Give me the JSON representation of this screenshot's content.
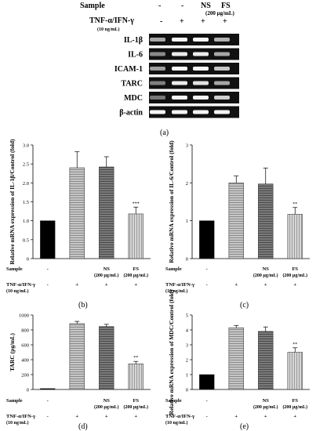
{
  "panel_a": {
    "header_sample": "Sample",
    "header_tnf": "TNF-α/IFN-γ",
    "header_tnf_conc": "(10 ng/mL)",
    "col_labels": [
      "-",
      "-",
      "NS",
      "FS"
    ],
    "col_sublabel_fs": "(200 µg/mL)",
    "tnf_marks": [
      "-",
      "+",
      "+",
      "+"
    ],
    "bands": [
      "IL-1β",
      "IL-6",
      "ICAM-1",
      "TARC",
      "MDC",
      "β-actin"
    ],
    "caption": "(a)"
  },
  "chart_data": [
    {
      "type": "bar",
      "panel": "(b)",
      "ylabel": "Relative mRNA expression of IL-1β/Control (fold)",
      "ylim": [
        0,
        3.0
      ],
      "yticks": [
        "0",
        "0.5",
        "1.0",
        "1.5",
        "2.0",
        "2.5",
        "3.0"
      ],
      "categories": [
        "-",
        "-",
        "NS",
        "FS"
      ],
      "values": [
        1.0,
        2.4,
        2.42,
        1.18
      ],
      "errors": [
        0,
        0.42,
        0.27,
        0.18
      ],
      "sig": [
        "",
        "",
        "",
        "***"
      ],
      "colors": [
        "#000000",
        "#9a9a9a",
        "#6c6c6c",
        "#b4b4b4"
      ]
    },
    {
      "type": "bar",
      "panel": "(c)",
      "ylabel": "Relative mRNA expression of IL-6/Control (fold)",
      "ylim": [
        0,
        3
      ],
      "yticks": [
        "0",
        "1",
        "2",
        "3"
      ],
      "categories": [
        "-",
        "-",
        "NS",
        "FS"
      ],
      "values": [
        1.0,
        2.0,
        1.97,
        1.17
      ],
      "errors": [
        0,
        0.18,
        0.42,
        0.18
      ],
      "sig": [
        "",
        "",
        "",
        "**"
      ],
      "colors": [
        "#000000",
        "#9a9a9a",
        "#6c6c6c",
        "#b4b4b4"
      ]
    },
    {
      "type": "bar",
      "panel": "(d)",
      "ylabel": "TARC (pg/mL)",
      "ylim": [
        0,
        1000
      ],
      "yticks": [
        "0",
        "200",
        "400",
        "600",
        "800",
        "1000"
      ],
      "categories": [
        "-",
        "-",
        "NS",
        "FS"
      ],
      "values": [
        12,
        885,
        845,
        345
      ],
      "errors": [
        0,
        30,
        30,
        32
      ],
      "sig": [
        "",
        "",
        "",
        "**"
      ],
      "colors": [
        "#000000",
        "#9a9a9a",
        "#6c6c6c",
        "#b4b4b4"
      ]
    },
    {
      "type": "bar",
      "panel": "(e)",
      "ylabel": "Relative mRNA expression of MDC/Control (fold)",
      "ylim": [
        0,
        5
      ],
      "yticks": [
        "0",
        "1",
        "2",
        "3",
        "4",
        "5"
      ],
      "categories": [
        "-",
        "-",
        "NS",
        "FS"
      ],
      "values": [
        1.0,
        4.15,
        3.9,
        2.5
      ],
      "errors": [
        0,
        0.15,
        0.3,
        0.3
      ],
      "sig": [
        "",
        "",
        "",
        "**"
      ],
      "colors": [
        "#000000",
        "#9a9a9a",
        "#6c6c6c",
        "#b4b4b4"
      ]
    }
  ],
  "table_labels": {
    "sample": "Sample",
    "tnf": "TNF-α/IFN-γ",
    "tnf_conc": "(10 ng/mL)",
    "conc": "(200 µg/mL)",
    "sample_marks": [
      "-",
      "",
      "NS",
      "FS"
    ],
    "tnf_marks": [
      "-",
      "+",
      "+",
      "+"
    ]
  }
}
